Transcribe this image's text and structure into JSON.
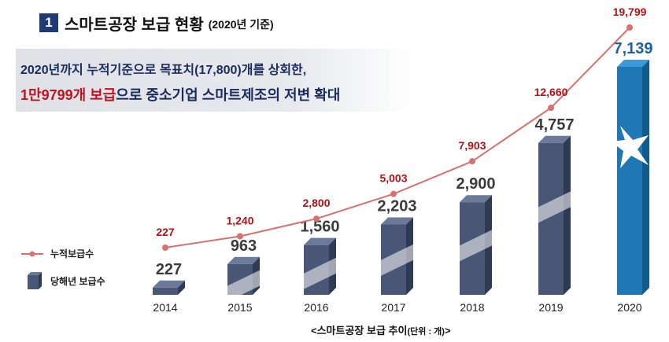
{
  "header": {
    "number": "1",
    "title": "스마트공장 보급 현황",
    "subtitle": "(2020년 기준)"
  },
  "highlight": {
    "line1": "2020년까지 누적기준으로 목표치(17,800)개를 상회한,",
    "line2_red": "1만9799개 보급",
    "line2_rest": "으로 중소기업 스마트제조의 저변 확대"
  },
  "legend": {
    "cumulative": "누적보급수",
    "annual": "당해년 보급수"
  },
  "caption": {
    "main": "<스마트공장 보급 추이",
    "unit": "(단위 : 개)",
    "close": ">"
  },
  "colors": {
    "line": "#d9706e",
    "line_label": "#b01217",
    "bar_front": "#4a5676",
    "bar_top": "#6c7a9a",
    "bar_side": "#2f3a55",
    "bar_2020": "#1f78b4",
    "annual_label": "#3b3b3b",
    "annual_label_2020": "#1f5f9f"
  },
  "chart_data": {
    "type": "bar",
    "categories": [
      "2014",
      "2015",
      "2016",
      "2017",
      "2018",
      "2019",
      "2020"
    ],
    "series": [
      {
        "name": "당해년 보급수",
        "type": "bar",
        "values": [
          227,
          963,
          1560,
          2203,
          2900,
          4757,
          7139
        ],
        "labels": [
          "227",
          "963",
          "1,560",
          "2,203",
          "2,900",
          "4,757",
          "7,139"
        ]
      },
      {
        "name": "누적보급수",
        "type": "line",
        "values": [
          227,
          1240,
          2800,
          5003,
          7903,
          12660,
          19799
        ],
        "labels": [
          "227",
          "1,240",
          "2,800",
          "5,003",
          "7,903",
          "12,660",
          "19,799"
        ]
      }
    ],
    "title": "스마트공장 보급 추이",
    "xlabel": "",
    "ylabel": "",
    "unit": "(단위 : 개)",
    "legend_position": "bottom-left"
  }
}
